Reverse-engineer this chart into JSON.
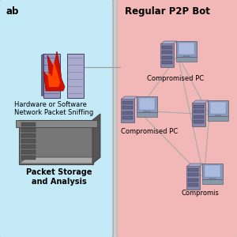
{
  "left_bg_color": "#c5eaf7",
  "right_bg_color": "#f2b8b8",
  "left_title": "ab",
  "right_title": "Regular P2P Bot",
  "left_label1": "Hardware or Software\nNetwork Packet Sniffing",
  "left_label2": "Packet Storage\nand Analysis",
  "right_label1": "Compromised PC",
  "right_label2": "Compromised PC",
  "right_label3": "Compromis",
  "fig_bg": "#cccccc",
  "line_color": "#aaaaaa",
  "title_fontsize": 8.5,
  "label_fontsize": 6.0,
  "label2_fontsize": 7.0
}
